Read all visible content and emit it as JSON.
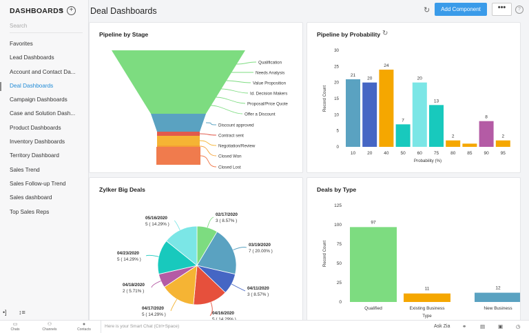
{
  "sidebar": {
    "title": "DASHBOARDS",
    "search_placeholder": "Search",
    "items": [
      {
        "label": "Favorites",
        "active": false
      },
      {
        "label": "Lead Dashboards",
        "active": false
      },
      {
        "label": "Account and Contact Da...",
        "active": false
      },
      {
        "label": "Deal Dashboards",
        "active": true
      },
      {
        "label": "Campaign Dashboards",
        "active": false
      },
      {
        "label": "Case and Solution Dash...",
        "active": false
      },
      {
        "label": "Product Dashboards",
        "active": false
      },
      {
        "label": "Inventory Dashboards",
        "active": false
      },
      {
        "label": "Territory Dashboard",
        "active": false
      },
      {
        "label": "Sales Trend",
        "active": false
      },
      {
        "label": "Sales Follow-up Trend",
        "active": false
      },
      {
        "label": "Sales dashboard",
        "active": false
      },
      {
        "label": "Top Sales Reps",
        "active": false
      }
    ],
    "collapse_icon": "•]",
    "sort_icon": "↕≡"
  },
  "header": {
    "title": "Deal Dashboards",
    "add_button": "Add Component",
    "more_button": "•••",
    "help": "?"
  },
  "colors": {
    "accent": "#3a9be9",
    "active": "#1f8ad6"
  },
  "panels": {
    "pipeline_stage": {
      "title": "Pipeline by Stage"
    },
    "pipeline_probability": {
      "title": "Pipeline by Probability"
    },
    "big_deals": {
      "title": "Zylker Big Deals"
    },
    "deals_type": {
      "title": "Deals by Type"
    }
  },
  "chart_data": [
    {
      "type": "funnel",
      "title": "Pipeline by Stage",
      "categories": [
        "Qualification",
        "Needs Analysis",
        "Value Proposition",
        "Id. Decision Makers",
        "Proposal/Price Quote",
        "Offer a Discount",
        "Discount approved",
        "Contract sent",
        "Negotiation/Review",
        "Closed Won",
        "Closed Lost"
      ],
      "colors": [
        "#7ddc80",
        "#7ddc80",
        "#7ddc80",
        "#7ddc80",
        "#7ddc80",
        "#7ddc80",
        "#5aa2c1",
        "#e15a4c",
        "#f5b434",
        "#f5a033",
        "#f07b4d"
      ]
    },
    {
      "type": "bar",
      "title": "Pipeline by Probability",
      "xlabel": "Probability (%)",
      "ylabel": "Record Count",
      "categories": [
        "10",
        "20",
        "40",
        "50",
        "60",
        "75",
        "80",
        "85",
        "90",
        "95"
      ],
      "values": [
        21,
        20,
        24,
        7,
        20,
        13,
        2,
        1,
        8,
        2
      ],
      "data_labels": [
        "21",
        "20",
        "24",
        "7",
        "20",
        "13",
        "2",
        "",
        "8",
        "2"
      ],
      "colors": [
        "#5aa2c1",
        "#4566c4",
        "#f5a700",
        "#18c9bd",
        "#7be6e6",
        "#18c9bd",
        "#f5a700",
        "#f5a700",
        "#b45ba5",
        "#f5a700"
      ],
      "ylim": [
        0,
        30
      ],
      "yticks": [
        "0",
        "5",
        "10",
        "15",
        "20",
        "25",
        "30"
      ]
    },
    {
      "type": "pie",
      "title": "Zylker Big Deals",
      "slices": [
        {
          "label": "02/17/2020",
          "value": 3,
          "pct": "3 ( 8.57% )",
          "color": "#7ddc80"
        },
        {
          "label": "03/19/2020",
          "value": 7,
          "pct": "7 ( 20.00% )",
          "color": "#5aa2c1"
        },
        {
          "label": "04/11/2020",
          "value": 3,
          "pct": "3 ( 8.57% )",
          "color": "#4566c4"
        },
        {
          "label": "04/16/2020",
          "value": 5,
          "pct": "5 ( 14.29% )",
          "color": "#e6503c"
        },
        {
          "label": "04/17/2020",
          "value": 5,
          "pct": "5 ( 14.29% )",
          "color": "#f5b434"
        },
        {
          "label": "04/18/2020",
          "value": 2,
          "pct": "2 ( 5.71% )",
          "color": "#b45ba5"
        },
        {
          "label": "04/23/2020",
          "value": 5,
          "pct": "5 ( 14.29% )",
          "color": "#18c9bd"
        },
        {
          "label": "05/16/2020",
          "value": 5,
          "pct": "5 ( 14.29% )",
          "color": "#7be6e6"
        }
      ]
    },
    {
      "type": "bar",
      "title": "Deals by Type",
      "xlabel": "Type",
      "ylabel": "Record Count",
      "categories": [
        "Qualified",
        "Existing Business",
        "New Business"
      ],
      "values": [
        97,
        11,
        12
      ],
      "colors": [
        "#7ddc80",
        "#f5a700",
        "#5aa2c1"
      ],
      "ylim": [
        0,
        125
      ],
      "yticks": [
        "0",
        "25",
        "50",
        "75",
        "100",
        "125"
      ]
    }
  ],
  "bottombar": {
    "chats": "Chats",
    "channels": "Channels",
    "contacts": "Contacts",
    "chat_placeholder": "Here is your Smart Chat (Ctrl+Space)",
    "askzia": "Ask Zia"
  }
}
